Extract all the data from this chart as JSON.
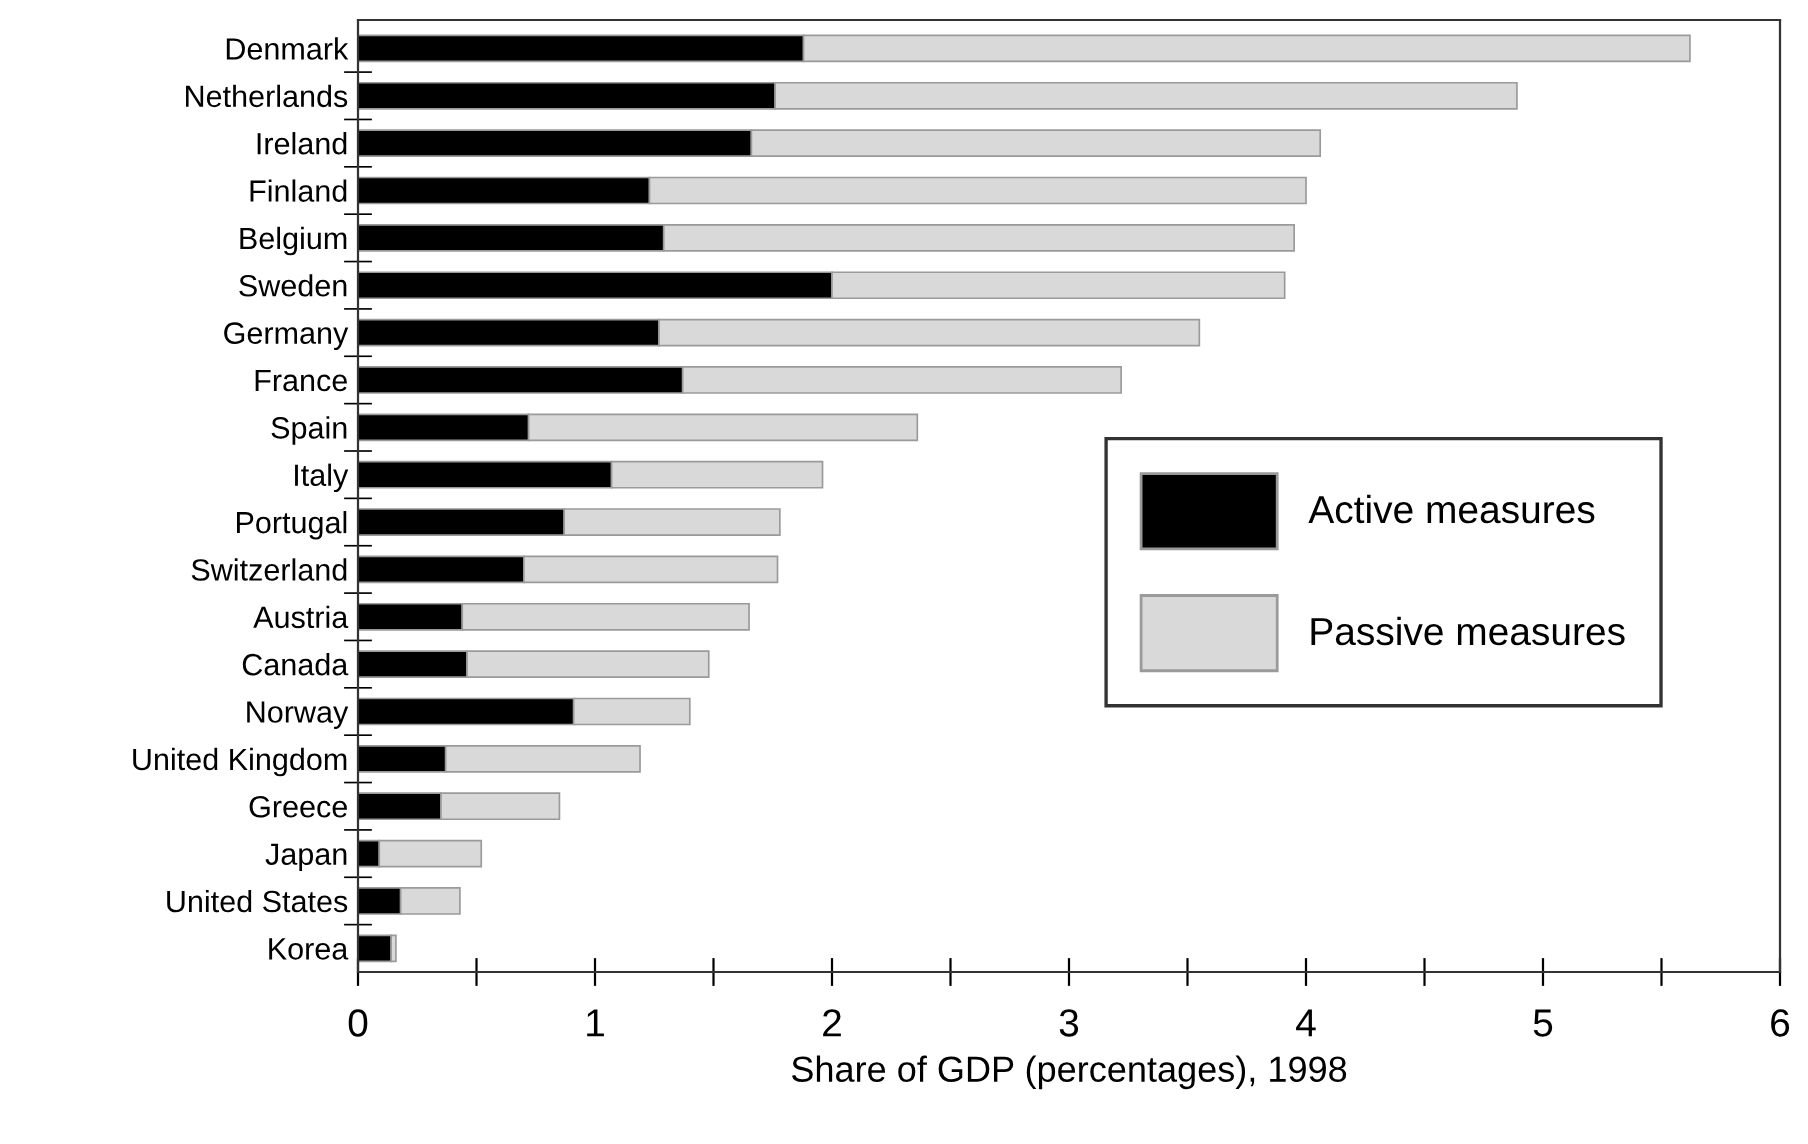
{
  "chart_data": {
    "type": "bar",
    "orientation": "horizontal",
    "stacked": true,
    "xlabel": "Share of GDP (percentages), 1998",
    "categories": [
      "Denmark",
      "Netherlands",
      "Ireland",
      "Finland",
      "Belgium",
      "Sweden",
      "Germany",
      "France",
      "Spain",
      "Italy",
      "Portugal",
      "Switzerland",
      "Austria",
      "Canada",
      "Norway",
      "United Kingdom",
      "Greece",
      "Japan",
      "United States",
      "Korea"
    ],
    "series": [
      {
        "name": "Active measures",
        "color": "#000000",
        "values": [
          1.88,
          1.76,
          1.66,
          1.23,
          1.29,
          2.0,
          1.27,
          1.37,
          0.72,
          1.07,
          0.87,
          0.7,
          0.44,
          0.46,
          0.91,
          0.37,
          0.35,
          0.09,
          0.18,
          0.14
        ]
      },
      {
        "name": "Passive measures",
        "color": "#d9d9d9",
        "values": [
          3.74,
          3.13,
          2.4,
          2.77,
          2.66,
          1.91,
          2.28,
          1.85,
          1.64,
          0.89,
          0.91,
          1.07,
          1.21,
          1.02,
          0.49,
          0.82,
          0.5,
          0.43,
          0.25,
          0.02
        ]
      }
    ],
    "xlim": [
      0,
      6
    ],
    "xticks": [
      0,
      {
        "value": 0.5,
        "label": null
      },
      1,
      {
        "value": 1.5,
        "label": null
      },
      2,
      {
        "value": 2.5,
        "label": null
      },
      3,
      {
        "value": 3.5,
        "label": null
      },
      4,
      {
        "value": 4.5,
        "label": null
      },
      5,
      {
        "value": 5.5,
        "label": null
      },
      6
    ],
    "grid": false,
    "legend": "right"
  }
}
